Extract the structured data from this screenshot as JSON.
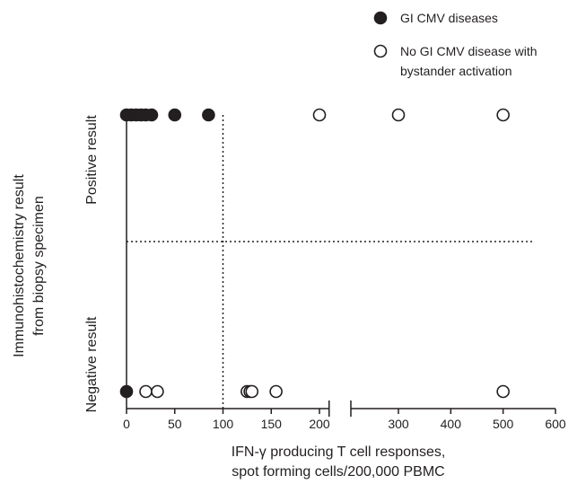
{
  "chart_data": {
    "type": "scatter",
    "xlabel": [
      "IFN-γ producing T cell responses,",
      "spot forming cells/200,000 PBMC"
    ],
    "ylabel": [
      "Immunohistochemistry result",
      "from biopsy specimen"
    ],
    "y_categories": [
      "Positive result",
      "Negative result"
    ],
    "x_axis": {
      "broken": true,
      "segment1": {
        "range": [
          0,
          210
        ],
        "ticks": [
          0,
          50,
          100,
          150,
          200
        ]
      },
      "segment2": {
        "range": [
          210,
          600
        ],
        "ticks": [
          300,
          400,
          500,
          600
        ]
      }
    },
    "thresholds": {
      "x": 100,
      "y_between_categories": true
    },
    "legend": {
      "position": "top-right",
      "entries": [
        {
          "series": "gi_cmv",
          "label": [
            "GI CMV diseases"
          ]
        },
        {
          "series": "bystander",
          "label": [
            "No GI CMV disease with",
            "bystander activation"
          ]
        }
      ]
    },
    "series": [
      {
        "id": "gi_cmv",
        "name": "GI CMV diseases",
        "marker": "filled-circle",
        "points": [
          {
            "x": 0,
            "y": "Positive result"
          },
          {
            "x": 5,
            "y": "Positive result"
          },
          {
            "x": 10,
            "y": "Positive result"
          },
          {
            "x": 15,
            "y": "Positive result"
          },
          {
            "x": 20,
            "y": "Positive result"
          },
          {
            "x": 26,
            "y": "Positive result"
          },
          {
            "x": 50,
            "y": "Positive result"
          },
          {
            "x": 85,
            "y": "Positive result"
          },
          {
            "x": 0,
            "y": "Negative result"
          }
        ]
      },
      {
        "id": "bystander",
        "name": "No GI CMV disease with bystander activation",
        "marker": "open-circle",
        "points": [
          {
            "x": 200,
            "y": "Positive result"
          },
          {
            "x": 300,
            "y": "Positive result"
          },
          {
            "x": 500,
            "y": "Positive result"
          },
          {
            "x": 20,
            "y": "Negative result"
          },
          {
            "x": 32,
            "y": "Negative result"
          },
          {
            "x": 125,
            "y": "Negative result"
          },
          {
            "x": 128,
            "y": "Negative result"
          },
          {
            "x": 130,
            "y": "Negative result"
          },
          {
            "x": 155,
            "y": "Negative result"
          },
          {
            "x": 500,
            "y": "Negative result"
          }
        ]
      }
    ]
  }
}
